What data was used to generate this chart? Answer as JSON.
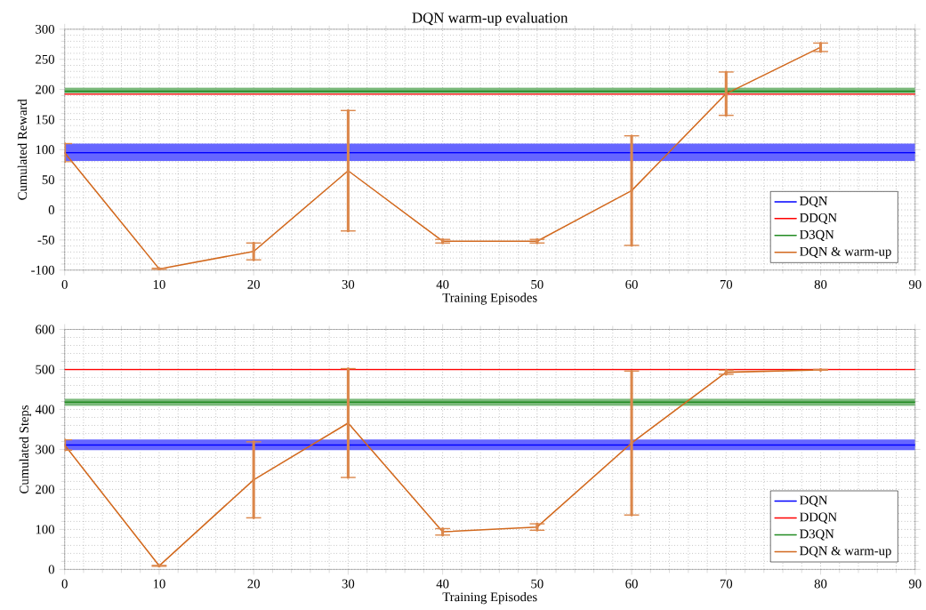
{
  "chart_data": [
    {
      "type": "line",
      "title": "DQN warm-up evaluation",
      "xlabel": "Training Episodes",
      "ylabel": "Cumulated Reward",
      "xlim": [
        0,
        90
      ],
      "ylim": [
        -100,
        300
      ],
      "xticks": [
        0,
        10,
        20,
        30,
        40,
        50,
        60,
        70,
        80,
        90
      ],
      "yticks": [
        -100,
        -50,
        0,
        50,
        100,
        150,
        200,
        250,
        300
      ],
      "grid": true,
      "legend": "bottom right",
      "marker": "none",
      "series": [
        {
          "name": "DQN",
          "color": "#0000ff",
          "x": [
            0,
            90
          ],
          "values": [
            95,
            95
          ],
          "lower": [
            81,
            81
          ],
          "upper": [
            110,
            110
          ]
        },
        {
          "name": "DDQN",
          "color": "#ff0000",
          "x": [
            0,
            90
          ],
          "values": [
            192,
            192
          ]
        },
        {
          "name": "D3QN",
          "color": "#228b22",
          "x": [
            0,
            90
          ],
          "values": [
            197,
            197
          ],
          "lower": [
            194,
            194
          ],
          "upper": [
            203,
            203
          ]
        },
        {
          "name": "DQN & warm-up",
          "color": "#d2691e",
          "x": [
            0,
            10,
            20,
            30,
            40,
            50,
            60,
            70,
            80
          ],
          "values": [
            95,
            -98,
            -69,
            65,
            -52,
            -52,
            32,
            193,
            270
          ],
          "errors": [
            15,
            1,
            14,
            100,
            3,
            3,
            91,
            36,
            7
          ]
        }
      ]
    },
    {
      "type": "line",
      "xlabel": "Training Episodes",
      "ylabel": "Cumulated Steps",
      "xlim": [
        0,
        90
      ],
      "ylim": [
        0,
        600
      ],
      "xticks": [
        0,
        10,
        20,
        30,
        40,
        50,
        60,
        70,
        80,
        90
      ],
      "yticks": [
        0,
        100,
        200,
        300,
        400,
        500,
        600
      ],
      "grid": true,
      "legend": "bottom right",
      "marker": "none",
      "series": [
        {
          "name": "DQN",
          "color": "#0000ff",
          "x": [
            0,
            90
          ],
          "values": [
            311,
            311
          ],
          "lower": [
            298,
            298
          ],
          "upper": [
            325,
            325
          ]
        },
        {
          "name": "DDQN",
          "color": "#ff0000",
          "x": [
            0,
            90
          ],
          "values": [
            500,
            500
          ]
        },
        {
          "name": "D3QN",
          "color": "#228b22",
          "x": [
            0,
            90
          ],
          "values": [
            418,
            418
          ],
          "lower": [
            409,
            409
          ],
          "upper": [
            427,
            427
          ]
        },
        {
          "name": "DQN & warm-up",
          "color": "#d2691e",
          "x": [
            0,
            10,
            20,
            30,
            40,
            50,
            60,
            70,
            80
          ],
          "values": [
            311,
            9,
            224,
            366,
            94,
            106,
            316,
            493,
            499
          ],
          "errors": [
            13,
            1,
            95,
            136,
            8,
            8,
            180,
            5,
            1
          ]
        }
      ]
    }
  ]
}
